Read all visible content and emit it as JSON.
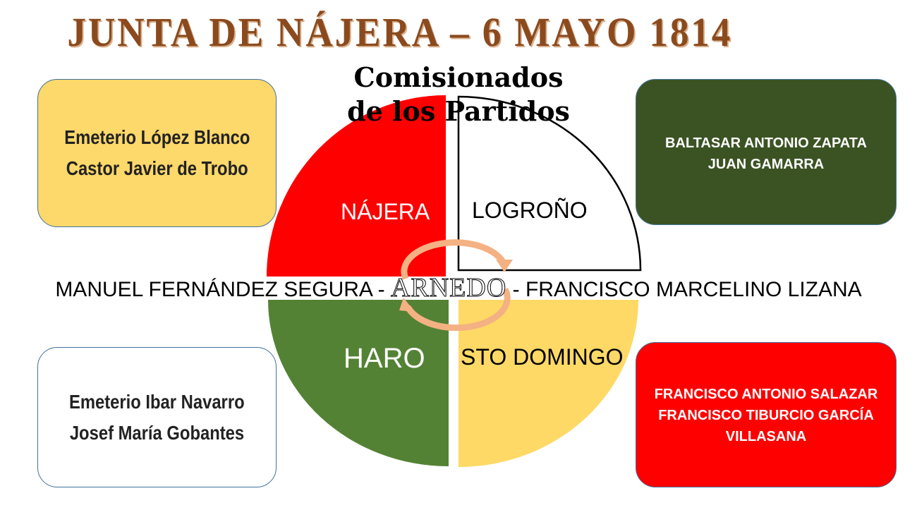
{
  "title": "JUNTA DE NÁJERA – 6 MAYO 1814",
  "subtitle": {
    "line1": "Comisionados",
    "line2": "de los Partidos"
  },
  "partidos": [
    {
      "label": "NÁJERA",
      "color": "#FF0000",
      "text_color": "#FFFFFF"
    },
    {
      "label": "LOGROÑO",
      "color": "#FFFFFF",
      "text_color": "#000000"
    },
    {
      "label": "HARO",
      "color": "#548235",
      "text_color": "#FFFFFF"
    },
    {
      "label": "STO DOMINGO",
      "color": "#FFD966",
      "text_color": "#000000"
    }
  ],
  "center": {
    "left_name": "MANUEL FERNÁNDEZ SEGURA",
    "sep1": " - ",
    "label": "ARNEDO",
    "sep2": " - ",
    "right_name": "FRANCISCO MARCELINO LIZANA",
    "cycle_arrow_color": "#F4B183"
  },
  "boxes": {
    "najera": [
      "Emeterio López Blanco",
      "Castor Javier de Trobo"
    ],
    "logrono": [
      "BALTASAR ANTONIO ZAPATA",
      "JUAN GAMARRA"
    ],
    "haro": [
      "Emeterio Ibar Navarro",
      "Josef María Gobantes"
    ],
    "sto_domingo": [
      "FRANCISCO ANTONIO SALAZAR",
      "FRANCISCO TIBURCIO GARCÍA",
      "VILLASANA"
    ]
  }
}
